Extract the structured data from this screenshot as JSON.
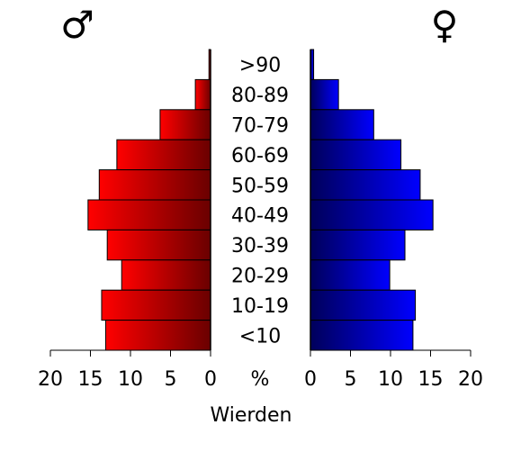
{
  "chart_data": {
    "type": "bar",
    "orientation": "horizontal",
    "subtype": "population-pyramid",
    "title": "",
    "xlabel": "Wierden",
    "unit_label": "%",
    "categories": [
      ">90",
      "80-89",
      "70-79",
      "60-69",
      "50-59",
      "40-49",
      "30-39",
      "20-29",
      "10-19",
      "<10"
    ],
    "series": [
      {
        "name": "male",
        "symbol": "♂",
        "side": "left",
        "values": [
          0.2,
          1.9,
          6.3,
          11.7,
          13.9,
          15.3,
          12.9,
          11.1,
          13.6,
          13.1
        ]
      },
      {
        "name": "female",
        "symbol": "♀",
        "side": "right",
        "values": [
          0.4,
          3.5,
          7.9,
          11.3,
          13.7,
          15.3,
          11.8,
          9.9,
          13.1,
          12.8
        ]
      }
    ],
    "xlim": [
      0,
      20
    ],
    "xticks": [
      20,
      15,
      10,
      5,
      0
    ],
    "xticks_right": [
      0,
      5,
      10,
      15,
      20
    ],
    "colors": {
      "male_light": "#ff0000",
      "male_dark": "#6a0000",
      "female_light": "#0000ff",
      "female_dark": "#00005a",
      "bar_stroke": "#000000"
    },
    "grid": false,
    "legend": "none"
  }
}
